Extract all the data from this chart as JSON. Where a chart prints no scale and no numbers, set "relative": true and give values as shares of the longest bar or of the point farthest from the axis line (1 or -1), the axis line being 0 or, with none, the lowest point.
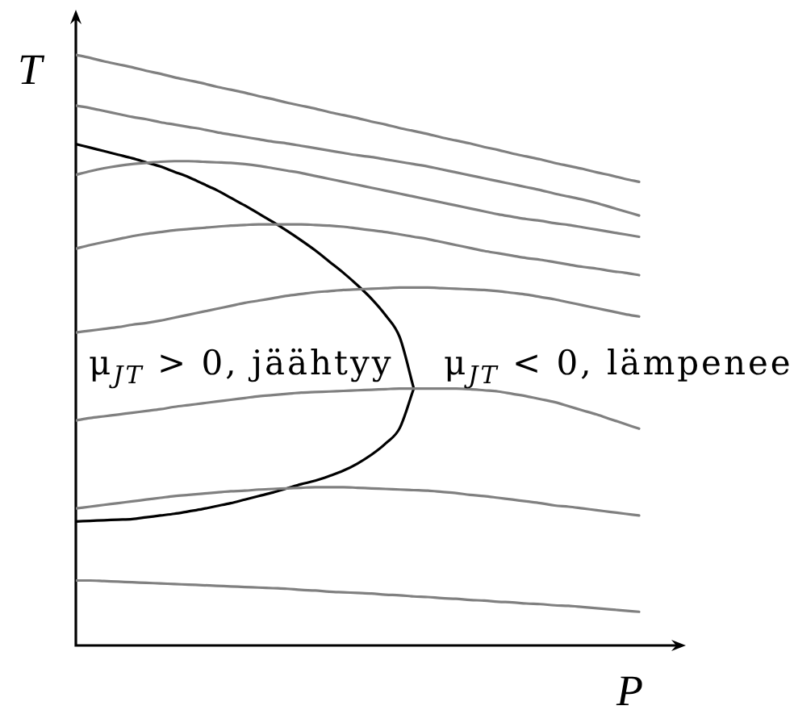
{
  "chart_data": {
    "type": "line",
    "relative": true,
    "xlabel": "P",
    "ylabel": "T",
    "tick_labels": false,
    "annotations": [
      "μ$_{JT}$ > 0, jäähtyy",
      "μ$_{JT}$ < 0, lämpenee"
    ],
    "categories": [
      null,
      null,
      null,
      null,
      null,
      null,
      null,
      null,
      null,
      null,
      null,
      null,
      null,
      null,
      null,
      null,
      null,
      null,
      null,
      null,
      null,
      null,
      null,
      null,
      null,
      null,
      null,
      null,
      null,
      null,
      null,
      null,
      null,
      null,
      null,
      null,
      null,
      null,
      null,
      null,
      null
    ],
    "series": [
      {
        "color": "#808080",
        "values": [
          1,
          0.995,
          0.989,
          0.984,
          0.979,
          0.973,
          0.968,
          0.962,
          0.957,
          0.952,
          0.946,
          0.941,
          0.936,
          0.93,
          0.925,
          0.919,
          0.914,
          0.909,
          0.903,
          0.898,
          0.893,
          0.887,
          0.882,
          0.876,
          0.871,
          0.866,
          0.86,
          0.855,
          0.85,
          0.844,
          0.839,
          0.833,
          0.828,
          0.823,
          0.817,
          0.812,
          0.807,
          0.801,
          0.796,
          0.79,
          0.785
        ]
      },
      {
        "color": "#808080",
        "values": [
          0.914,
          0.91,
          0.905,
          0.9,
          0.895,
          0.891,
          0.886,
          0.882,
          0.878,
          0.874,
          0.869,
          0.865,
          0.861,
          0.857,
          0.853,
          0.85,
          0.846,
          0.842,
          0.838,
          0.834,
          0.83,
          0.827,
          0.823,
          0.819,
          0.815,
          0.811,
          0.806,
          0.801,
          0.796,
          0.791,
          0.786,
          0.781,
          0.776,
          0.771,
          0.765,
          0.76,
          0.755,
          0.749,
          0.742,
          0.735,
          0.728
        ]
      },
      {
        "color": "#808080",
        "values": [
          0.797,
          0.803,
          0.808,
          0.812,
          0.815,
          0.817,
          0.819,
          0.82,
          0.82,
          0.819,
          0.818,
          0.817,
          0.815,
          0.812,
          0.808,
          0.804,
          0.8,
          0.795,
          0.79,
          0.785,
          0.78,
          0.775,
          0.77,
          0.765,
          0.76,
          0.755,
          0.75,
          0.745,
          0.74,
          0.735,
          0.73,
          0.726,
          0.722,
          0.719,
          0.715,
          0.712,
          0.708,
          0.704,
          0.7,
          0.696,
          0.692
        ]
      },
      {
        "color": "#808080",
        "values": [
          0.672,
          0.678,
          0.683,
          0.688,
          0.693,
          0.697,
          0.7,
          0.703,
          0.705,
          0.707,
          0.709,
          0.711,
          0.712,
          0.713,
          0.713,
          0.713,
          0.713,
          0.712,
          0.711,
          0.709,
          0.706,
          0.703,
          0.7,
          0.696,
          0.692,
          0.688,
          0.683,
          0.678,
          0.673,
          0.668,
          0.664,
          0.66,
          0.656,
          0.653,
          0.649,
          0.645,
          0.641,
          0.638,
          0.634,
          0.631,
          0.627
        ]
      },
      {
        "color": "#808080",
        "values": [
          0.53,
          0.533,
          0.536,
          0.539,
          0.543,
          0.546,
          0.55,
          0.555,
          0.56,
          0.565,
          0.57,
          0.575,
          0.58,
          0.584,
          0.588,
          0.592,
          0.595,
          0.598,
          0.6,
          0.602,
          0.603,
          0.604,
          0.605,
          0.606,
          0.606,
          0.606,
          0.605,
          0.604,
          0.603,
          0.602,
          0.6,
          0.597,
          0.594,
          0.59,
          0.586,
          0.581,
          0.576,
          0.571,
          0.566,
          0.561,
          0.557
        ]
      },
      {
        "color": "#808080",
        "values": [
          0.381,
          0.385,
          0.388,
          0.391,
          0.394,
          0.397,
          0.4,
          0.404,
          0.407,
          0.41,
          0.413,
          0.416,
          0.419,
          0.422,
          0.424,
          0.426,
          0.428,
          0.429,
          0.43,
          0.431,
          0.432,
          0.433,
          0.434,
          0.435,
          0.435,
          0.435,
          0.435,
          0.435,
          0.434,
          0.432,
          0.43,
          0.426,
          0.422,
          0.417,
          0.412,
          0.405,
          0.398,
          0.391,
          0.383,
          0.375,
          0.367
        ]
      },
      {
        "color": "#808080",
        "values": [
          0.232,
          0.235,
          0.238,
          0.241,
          0.244,
          0.247,
          0.25,
          0.253,
          0.255,
          0.257,
          0.259,
          0.261,
          0.262,
          0.264,
          0.265,
          0.266,
          0.267,
          0.268,
          0.268,
          0.268,
          0.267,
          0.266,
          0.265,
          0.264,
          0.263,
          0.262,
          0.26,
          0.258,
          0.255,
          0.253,
          0.25,
          0.247,
          0.244,
          0.241,
          0.237,
          0.235,
          0.232,
          0.229,
          0.226,
          0.223,
          0.22
        ]
      },
      {
        "color": "#808080",
        "values": [
          0.11,
          0.11,
          0.109,
          0.108,
          0.107,
          0.106,
          0.105,
          0.104,
          0.103,
          0.102,
          0.101,
          0.1,
          0.099,
          0.098,
          0.097,
          0.096,
          0.094,
          0.093,
          0.091,
          0.09,
          0.089,
          0.088,
          0.086,
          0.085,
          0.083,
          0.082,
          0.08,
          0.079,
          0.077,
          0.076,
          0.074,
          0.073,
          0.071,
          0.07,
          0.068,
          0.067,
          0.065,
          0.063,
          0.061,
          0.059,
          0.057
        ]
      },
      {
        "color": "#000000",
        "values": [
          0.849,
          0.843,
          0.837,
          0.831,
          0.825,
          0.818,
          0.811,
          0.802,
          0.793,
          0.782,
          0.771,
          0.758,
          0.745,
          0.731,
          0.717,
          0.702,
          0.686,
          0.669,
          0.65,
          0.631,
          0.61,
          0.587,
          0.559,
          0.522,
          0.435,
          null,
          null,
          null,
          null,
          null,
          null,
          null,
          null,
          null,
          null,
          null,
          null,
          null,
          null,
          null,
          null
        ]
      },
      {
        "color": "#000000",
        "values": [
          0.21,
          0.211,
          0.212,
          0.213,
          0.214,
          0.217,
          0.22,
          0.223,
          0.227,
          0.231,
          0.236,
          0.241,
          0.247,
          0.253,
          0.259,
          0.266,
          0.273,
          0.279,
          0.287,
          0.296,
          0.308,
          0.323,
          0.342,
          0.368,
          0.435,
          null,
          null,
          null,
          null,
          null,
          null,
          null,
          null,
          null,
          null,
          null,
          null,
          null,
          null,
          null,
          null
        ]
      }
    ]
  }
}
